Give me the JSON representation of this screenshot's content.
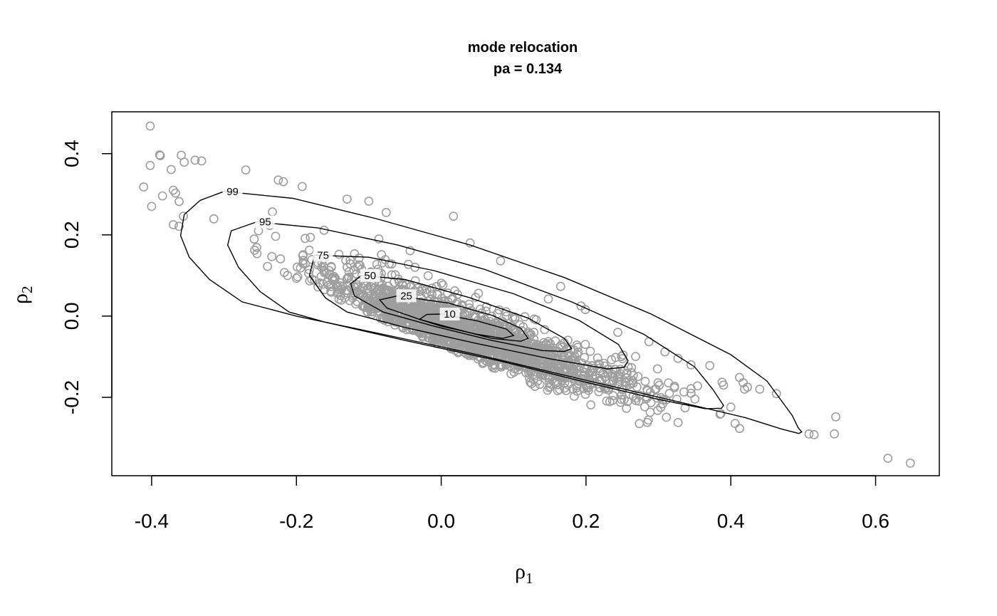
{
  "chart_data": {
    "type": "scatter",
    "title": "mode relocation",
    "subtitle": "pa =  0.134",
    "xlabel": {
      "symbol": "ρ",
      "sub": "1"
    },
    "ylabel": {
      "symbol": "ρ",
      "sub": "2"
    },
    "xlim": [
      -0.455,
      0.688
    ],
    "ylim": [
      -0.393,
      0.503
    ],
    "x_ticks": [
      -0.4,
      -0.2,
      0.0,
      0.2,
      0.4,
      0.6
    ],
    "x_tick_labels": [
      "-0.4",
      "-0.2",
      "0.0",
      "0.2",
      "0.4",
      "0.6"
    ],
    "y_ticks": [
      -0.2,
      0.0,
      0.2,
      0.4
    ],
    "y_tick_labels": [
      "-0.2",
      "0.0",
      "0.2",
      "0.4"
    ],
    "grid": false,
    "point_color": "#9e9e9e",
    "line_color": "#000000",
    "points_outliers": [
      [
        -0.402,
        0.468
      ],
      [
        -0.389,
        0.397
      ],
      [
        -0.388,
        0.395
      ],
      [
        -0.402,
        0.371
      ],
      [
        -0.411,
        0.318
      ],
      [
        -0.4,
        0.27
      ],
      [
        -0.385,
        0.296
      ],
      [
        -0.37,
        0.31
      ],
      [
        -0.367,
        0.303
      ],
      [
        -0.373,
        0.361
      ],
      [
        -0.359,
        0.396
      ],
      [
        -0.355,
        0.379
      ],
      [
        -0.34,
        0.384
      ],
      [
        -0.331,
        0.382
      ],
      [
        -0.37,
        0.225
      ],
      [
        -0.362,
        0.221
      ],
      [
        -0.356,
        0.246
      ],
      [
        -0.362,
        0.282
      ],
      [
        -0.27,
        0.36
      ],
      [
        -0.225,
        0.335
      ],
      [
        -0.218,
        0.331
      ],
      [
        -0.192,
        0.319
      ],
      [
        -0.13,
        0.288
      ],
      [
        -0.1,
        0.283
      ],
      [
        -0.076,
        0.255
      ],
      [
        0.017,
        0.246
      ],
      [
        0.04,
        0.18
      ],
      [
        0.082,
        0.136
      ],
      [
        0.148,
        0.042
      ],
      [
        0.165,
        0.073
      ],
      [
        0.193,
        0.025
      ],
      [
        0.199,
        0.016
      ],
      [
        0.244,
        -0.04
      ],
      [
        0.287,
        -0.063
      ],
      [
        0.309,
        -0.088
      ],
      [
        0.327,
        -0.104
      ],
      [
        0.345,
        -0.12
      ],
      [
        0.371,
        -0.122
      ],
      [
        0.388,
        -0.163
      ],
      [
        0.39,
        -0.17
      ],
      [
        0.412,
        -0.151
      ],
      [
        0.417,
        -0.164
      ],
      [
        0.419,
        -0.18
      ],
      [
        0.423,
        -0.175
      ],
      [
        0.44,
        -0.18
      ],
      [
        0.463,
        -0.191
      ],
      [
        0.515,
        -0.292
      ],
      [
        0.508,
        -0.29
      ],
      [
        0.545,
        -0.248
      ],
      [
        0.543,
        -0.29
      ],
      [
        0.617,
        -0.35
      ],
      [
        0.648,
        -0.362
      ]
    ],
    "cloud": {
      "n_points": 1700,
      "center": [
        0.03,
        -0.04
      ],
      "principal_axis": [
        0.853,
        -0.522
      ],
      "sd_along": 0.14,
      "sd_across": 0.028
    },
    "contour_labels": [
      "99",
      "95",
      "75",
      "50",
      "25",
      "10"
    ],
    "contours": [
      {
        "level": "99",
        "points": [
          [
            -0.3,
            0.307
          ],
          [
            -0.205,
            0.29
          ],
          [
            -0.09,
            0.24
          ],
          [
            0.04,
            0.175
          ],
          [
            0.17,
            0.095
          ],
          [
            0.29,
            0.005
          ],
          [
            0.4,
            -0.095
          ],
          [
            0.45,
            -0.16
          ],
          [
            0.485,
            -0.245
          ],
          [
            0.493,
            -0.275
          ],
          [
            0.498,
            -0.285
          ],
          [
            0.494,
            -0.289
          ],
          [
            0.47,
            -0.278
          ],
          [
            0.42,
            -0.25
          ],
          [
            0.33,
            -0.212
          ],
          [
            0.2,
            -0.158
          ],
          [
            0.05,
            -0.095
          ],
          [
            -0.08,
            -0.045
          ],
          [
            -0.2,
            0.0
          ],
          [
            -0.275,
            0.035
          ],
          [
            -0.32,
            0.09
          ],
          [
            -0.348,
            0.145
          ],
          [
            -0.36,
            0.198
          ],
          [
            -0.355,
            0.25
          ],
          [
            -0.333,
            0.285
          ],
          [
            -0.3,
            0.307
          ]
        ]
      },
      {
        "level": "95",
        "points": [
          [
            -0.255,
            0.232
          ],
          [
            -0.17,
            0.217
          ],
          [
            -0.06,
            0.175
          ],
          [
            0.06,
            0.115
          ],
          [
            0.18,
            0.035
          ],
          [
            0.28,
            -0.045
          ],
          [
            0.35,
            -0.125
          ],
          [
            0.375,
            -0.18
          ],
          [
            0.39,
            -0.22
          ],
          [
            0.387,
            -0.227
          ],
          [
            0.365,
            -0.228
          ],
          [
            0.3,
            -0.205
          ],
          [
            0.2,
            -0.163
          ],
          [
            0.08,
            -0.11
          ],
          [
            -0.05,
            -0.06
          ],
          [
            -0.16,
            -0.015
          ],
          [
            -0.21,
            0.01
          ],
          [
            -0.25,
            0.06
          ],
          [
            -0.28,
            0.12
          ],
          [
            -0.295,
            0.175
          ],
          [
            -0.29,
            0.21
          ],
          [
            -0.255,
            0.232
          ]
        ]
      },
      {
        "level": "75",
        "points": [
          [
            -0.175,
            0.15
          ],
          [
            -0.1,
            0.145
          ],
          [
            -0.01,
            0.112
          ],
          [
            0.1,
            0.055
          ],
          [
            0.19,
            -0.01
          ],
          [
            0.245,
            -0.07
          ],
          [
            0.258,
            -0.11
          ],
          [
            0.253,
            -0.126
          ],
          [
            0.23,
            -0.13
          ],
          [
            0.15,
            -0.105
          ],
          [
            0.05,
            -0.068
          ],
          [
            -0.05,
            -0.028
          ],
          [
            -0.13,
            0.01
          ],
          [
            -0.16,
            0.045
          ],
          [
            -0.182,
            0.1
          ],
          [
            -0.175,
            0.15
          ]
        ]
      },
      {
        "level": "50",
        "points": [
          [
            -0.11,
            0.1
          ],
          [
            -0.05,
            0.09
          ],
          [
            0.04,
            0.045
          ],
          [
            0.12,
            -0.005
          ],
          [
            0.17,
            -0.055
          ],
          [
            0.18,
            -0.08
          ],
          [
            0.17,
            -0.087
          ],
          [
            0.14,
            -0.085
          ],
          [
            0.07,
            -0.06
          ],
          [
            -0.01,
            -0.025
          ],
          [
            -0.08,
            0.01
          ],
          [
            -0.12,
            0.05
          ],
          [
            -0.125,
            0.08
          ],
          [
            -0.11,
            0.1
          ]
        ]
      },
      {
        "level": "25",
        "points": [
          [
            -0.06,
            0.05
          ],
          [
            0.01,
            0.032
          ],
          [
            0.07,
            0.002
          ],
          [
            0.11,
            -0.03
          ],
          [
            0.12,
            -0.055
          ],
          [
            0.11,
            -0.062
          ],
          [
            0.07,
            -0.055
          ],
          [
            0.02,
            -0.032
          ],
          [
            -0.03,
            -0.008
          ],
          [
            -0.075,
            0.02
          ],
          [
            -0.085,
            0.04
          ],
          [
            -0.06,
            0.05
          ]
        ]
      },
      {
        "level": "10",
        "points": [
          [
            0.0,
            0.005
          ],
          [
            0.05,
            -0.012
          ],
          [
            0.09,
            -0.032
          ],
          [
            0.1,
            -0.048
          ],
          [
            0.085,
            -0.055
          ],
          [
            0.05,
            -0.045
          ],
          [
            0.0,
            -0.025
          ],
          [
            -0.03,
            -0.008
          ],
          [
            -0.02,
            0.004
          ],
          [
            0.0,
            0.005
          ]
        ]
      }
    ]
  }
}
